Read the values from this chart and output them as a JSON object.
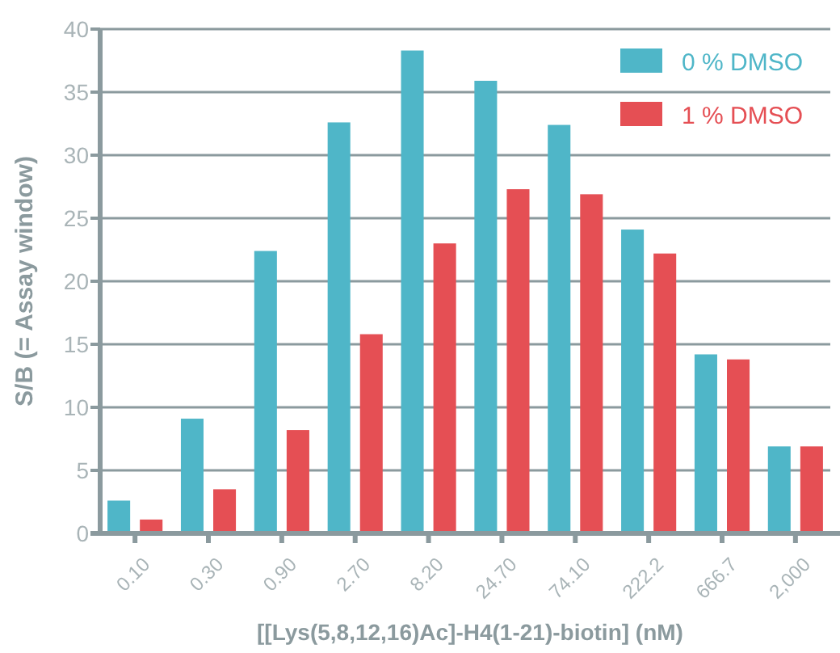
{
  "chart_data": {
    "type": "bar",
    "xlabel": "[[Lys(5,8,12,16)Ac]-H4(1-21)-biotin] (nM)",
    "ylabel": "S/B (= Assay window)",
    "categories": [
      "0.10",
      "0.30",
      "0.90",
      "2.70",
      "8.20",
      "24.70",
      "74.10",
      "222.2",
      "666.7",
      "2,000"
    ],
    "series": [
      {
        "name": "0 % DMSO",
        "color": "#4fb6c8",
        "values": [
          2.6,
          9.1,
          22.4,
          32.6,
          38.3,
          35.9,
          32.4,
          24.1,
          14.2,
          6.9
        ]
      },
      {
        "name": "1 % DMSO",
        "color": "#e54f54",
        "values": [
          1.1,
          3.5,
          8.2,
          15.8,
          23.0,
          27.3,
          26.9,
          22.2,
          13.8,
          6.9
        ]
      }
    ],
    "ylim": [
      0,
      40
    ],
    "yticks": [
      0,
      5,
      10,
      15,
      20,
      25,
      30,
      35,
      40
    ],
    "grid": "y",
    "legend": "top right"
  }
}
